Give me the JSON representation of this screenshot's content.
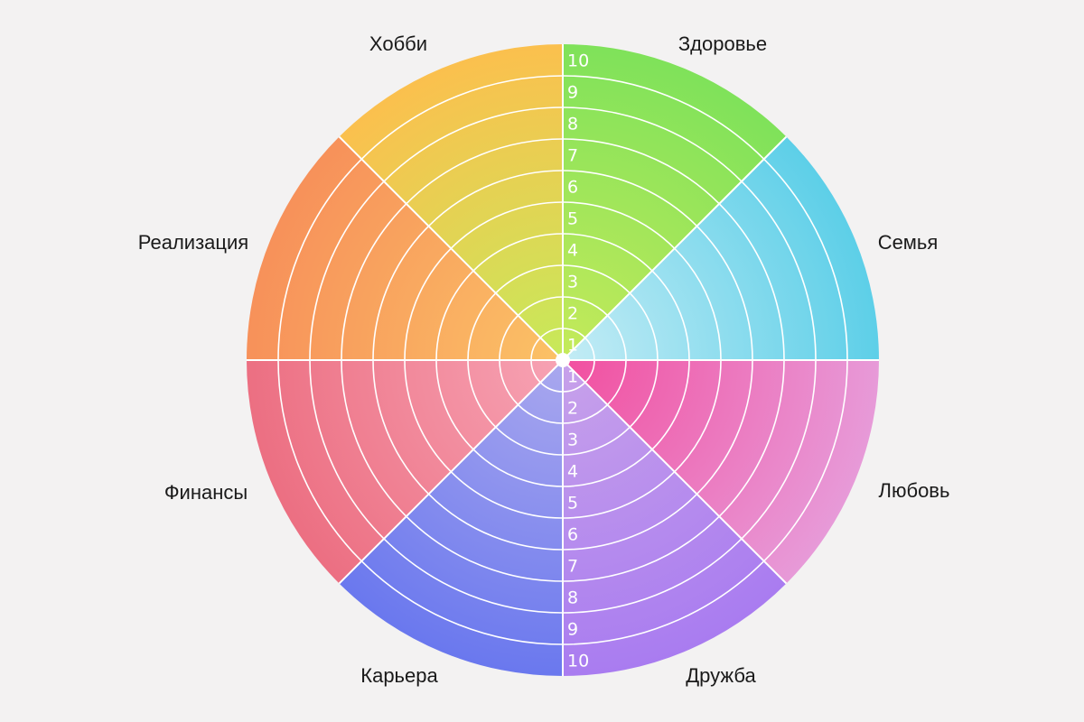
{
  "wheel": {
    "sectors": [
      {
        "label": "Здоровье",
        "inner": "#c6ea5a",
        "outer": "#7fe25a"
      },
      {
        "label": "Семья",
        "inner": "#c4ecf5",
        "outer": "#5dcfe8"
      },
      {
        "label": "Любовь",
        "inner": "#f24f9f",
        "outer": "#e79ad8"
      },
      {
        "label": "Дружба",
        "inner": "#c8a2ea",
        "outer": "#a97cf0"
      },
      {
        "label": "Карьера",
        "inner": "#aaa8ee",
        "outer": "#6a78ee"
      },
      {
        "label": "Финансы",
        "inner": "#f7a3b4",
        "outer": "#ec6f82"
      },
      {
        "label": "Реализация",
        "inner": "#fbc266",
        "outer": "#f7915a"
      },
      {
        "label": "Хобби",
        "inner": "#c6ea5a",
        "outer": "#fbc04e"
      }
    ],
    "scale": [
      "1",
      "2",
      "3",
      "4",
      "5",
      "6",
      "7",
      "8",
      "9",
      "10"
    ]
  }
}
